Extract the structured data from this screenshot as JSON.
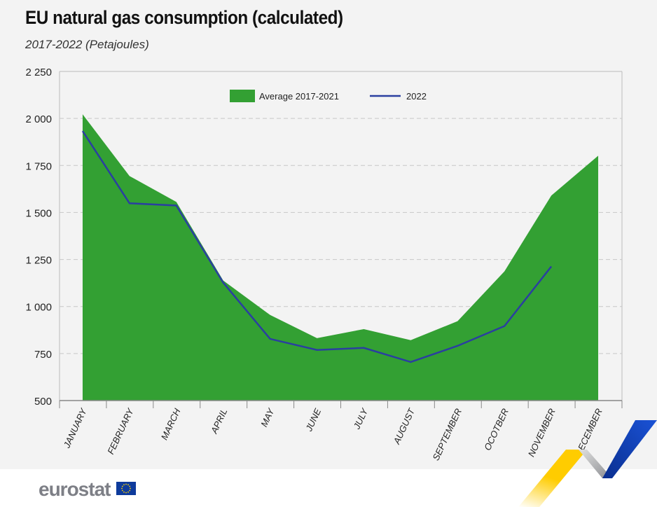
{
  "title": "EU natural gas consumption (calculated)",
  "subtitle": "2017-2022 (Petajoules)",
  "logo": "eurostat",
  "colors": {
    "average": "#33a033",
    "line2022": "#2a3fa0",
    "background": "#f3f3f3"
  },
  "chart_data": {
    "type": "area",
    "title": "EU natural gas consumption (calculated)",
    "subtitle": "2017-2022 (Petajoules)",
    "categories": [
      "JANUARY",
      "FEBRUARY",
      "MARCH",
      "APRIL",
      "MAY",
      "JUNE",
      "JULY",
      "AUGUST",
      "SEPTEMBER",
      "OCOTBER",
      "NOVEMBER",
      "DECEMBER"
    ],
    "series": [
      {
        "name": "Average 2017-2021",
        "type": "area",
        "color": "#33a033",
        "values": [
          2022,
          1694,
          1556,
          1138,
          955,
          832,
          880,
          821,
          922,
          1187,
          1590,
          1802
        ]
      },
      {
        "name": "2022",
        "type": "line",
        "color": "#2a3fa0",
        "values": [
          1933,
          1549,
          1537,
          1127,
          828,
          769,
          780,
          705,
          791,
          896,
          1213,
          null
        ]
      }
    ],
    "yticks": [
      "500",
      "750",
      "1 000",
      "1 250",
      "1 500",
      "1 750",
      "2 000",
      "2 250"
    ],
    "ylim": [
      500,
      2250
    ],
    "grid": true,
    "legend": "top-center"
  }
}
